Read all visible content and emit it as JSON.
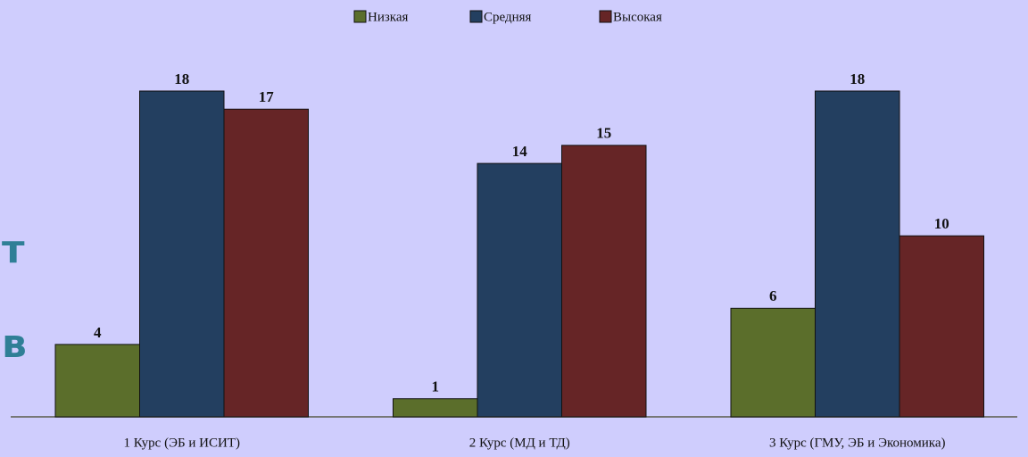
{
  "chart_data": {
    "type": "bar",
    "categories": [
      "1 Курс (ЭБ и ИСИТ)",
      "2 Курс (МД и ТД)",
      "3 Курс (ГМУ, ЭБ и Экономика)"
    ],
    "series": [
      {
        "name": "Низкая",
        "color": "#5b6e2b",
        "values": [
          4,
          1,
          6
        ]
      },
      {
        "name": "Средняя",
        "color": "#233f60",
        "values": [
          18,
          14,
          18
        ]
      },
      {
        "name": "Высокая",
        "color": "#662526",
        "values": [
          17,
          15,
          10
        ]
      }
    ],
    "ylim": [
      0,
      18
    ],
    "legend": "top",
    "annotations": [
      "т",
      "в"
    ]
  }
}
